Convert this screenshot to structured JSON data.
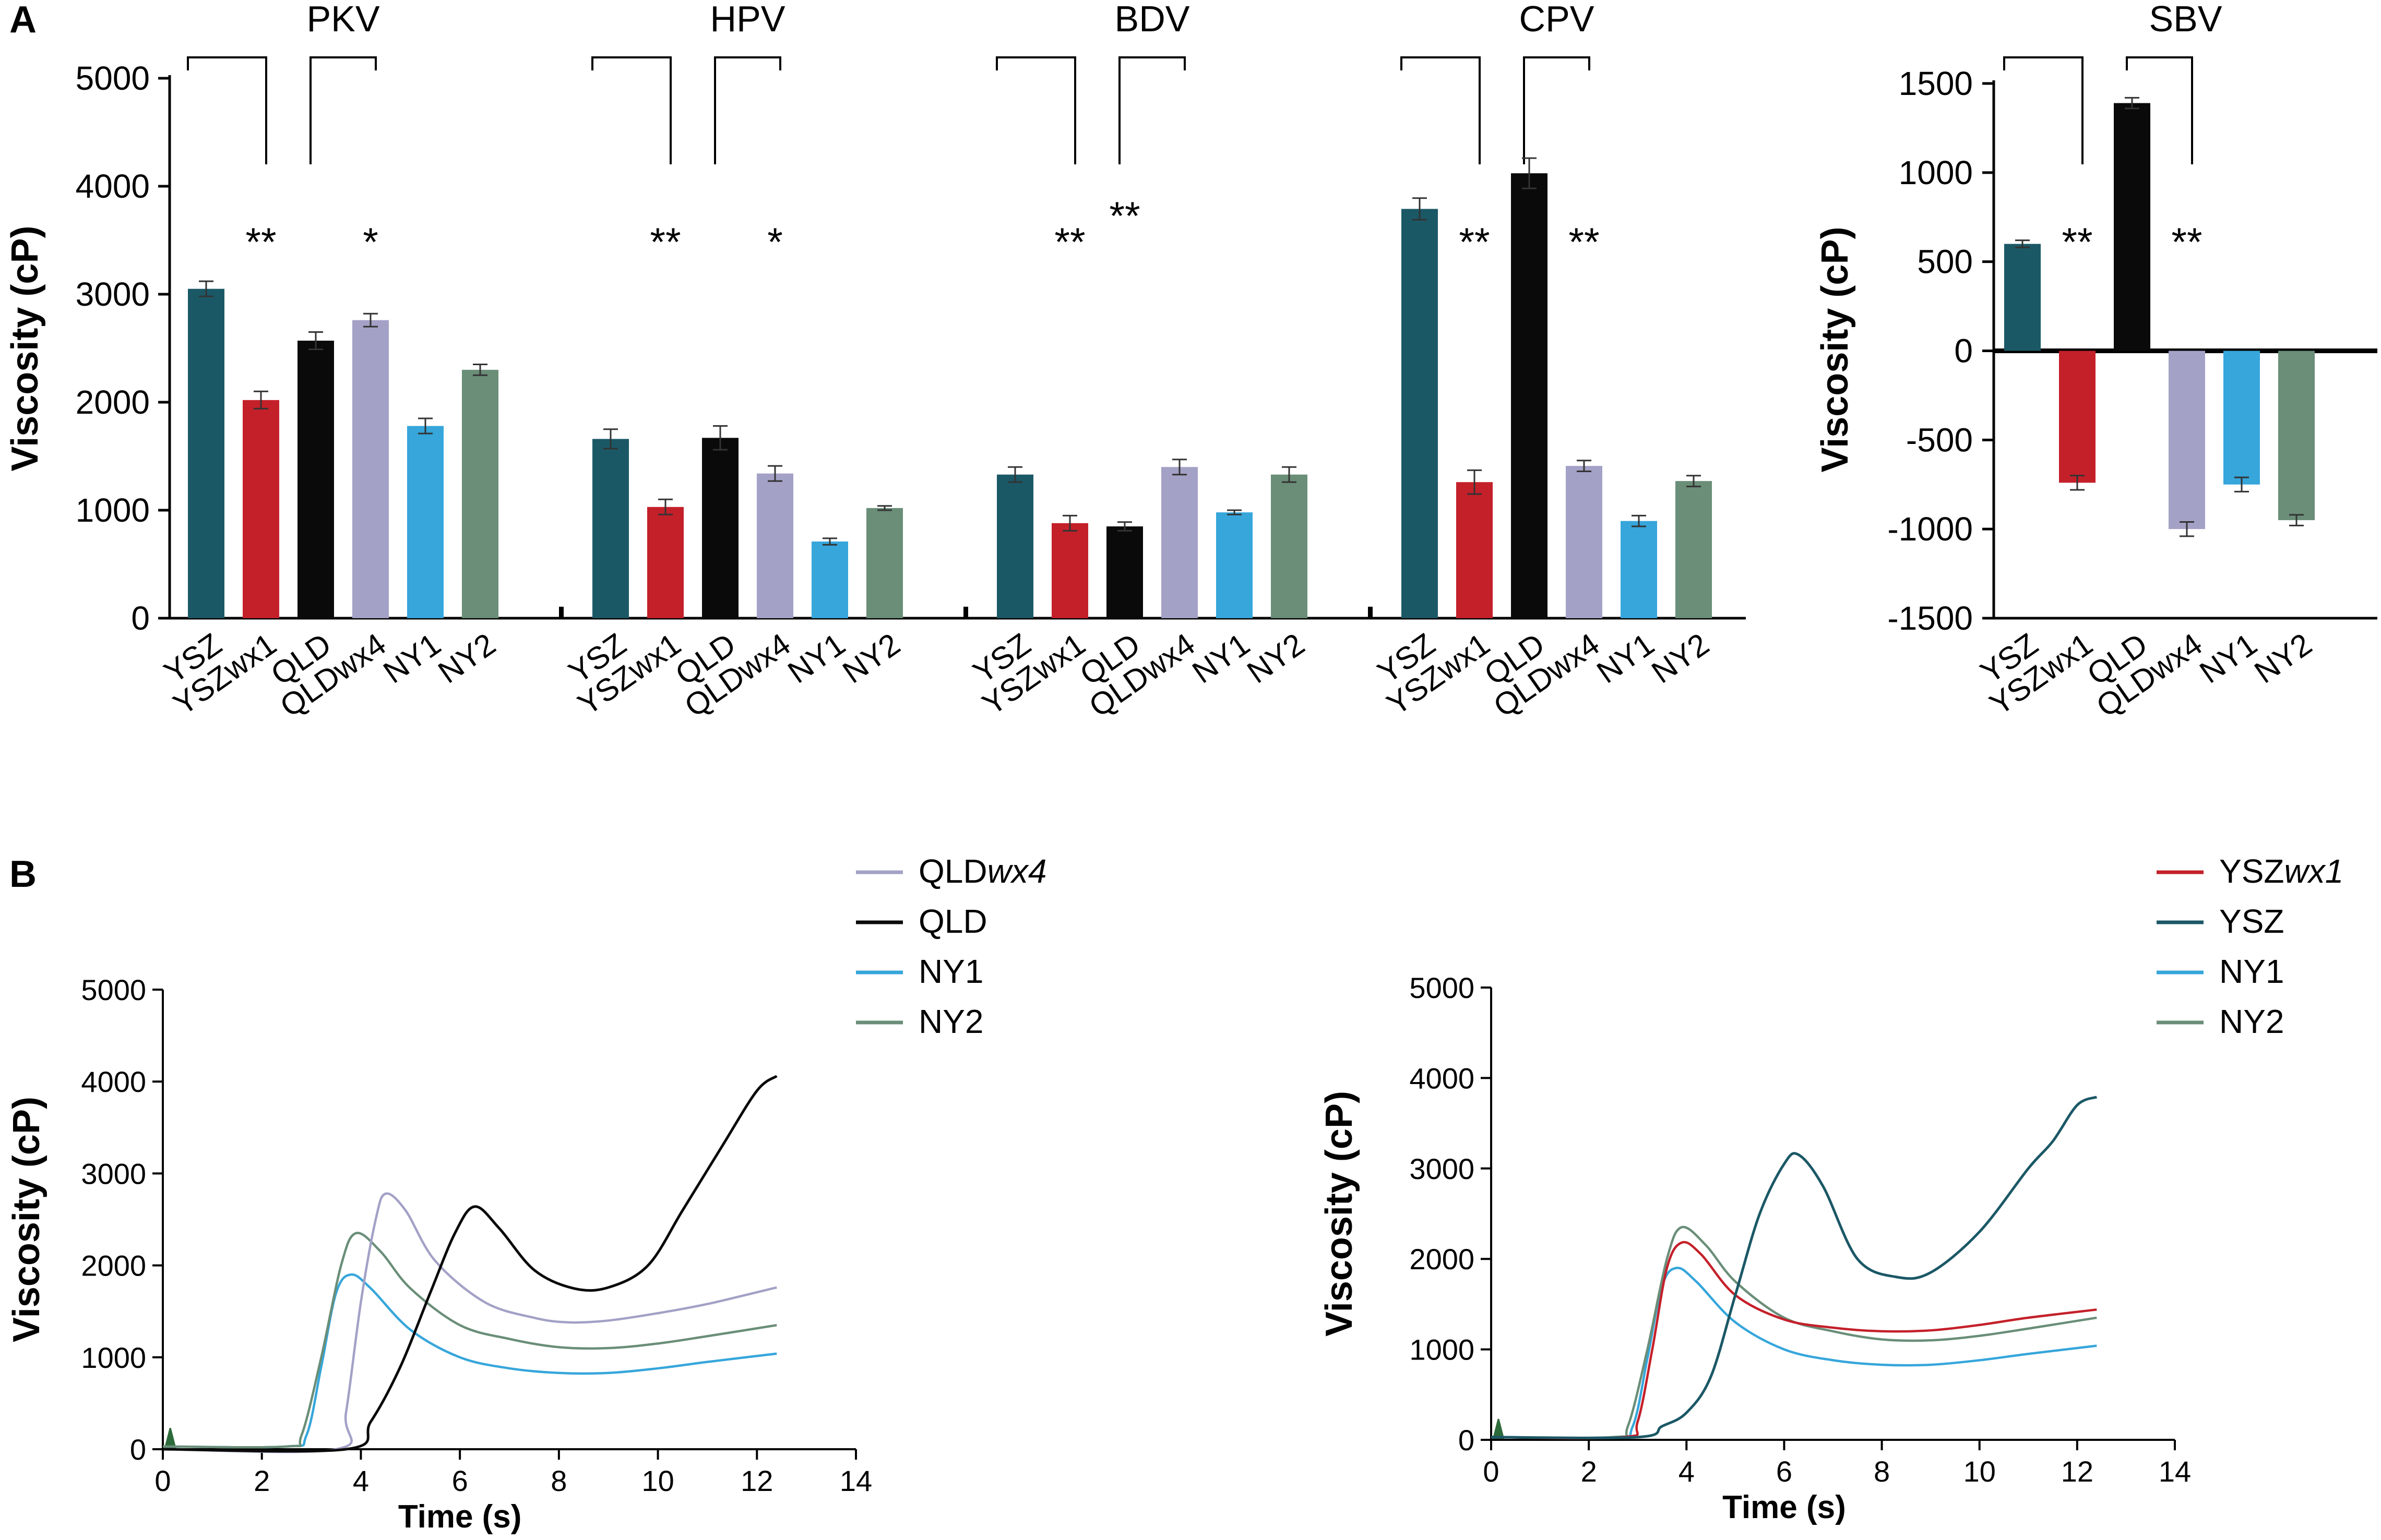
{
  "panels": {
    "a_label": "A",
    "b_label": "B"
  },
  "colors": {
    "YSZ": "#1b5866",
    "YSZwx1": "#c4202a",
    "QLD": "#0a0a0a",
    "QLDwx4": "#a3a1c6",
    "NY1": "#36a6db",
    "NY2": "#6a8e78"
  },
  "chart_data": [
    {
      "type": "bar",
      "id": "panel-a-main",
      "ylabel": "Viscosity (cP)",
      "ylim": [
        0,
        5000
      ],
      "yticks": [
        "0",
        "1000",
        "2000",
        "3000",
        "4000",
        "5000"
      ],
      "categories": [
        "YSZ",
        "YSZwx1",
        "QLD",
        "QLDwx4",
        "NY1",
        "NY2"
      ],
      "groups": [
        {
          "name": "PKV",
          "values": [
            3050,
            2020,
            2570,
            2760,
            1780,
            2300
          ],
          "errors": [
            70,
            80,
            80,
            60,
            70,
            50
          ],
          "stars": [
            {
              "text": "**",
              "at": 1
            },
            {
              "text": "*",
              "at": 3
            }
          ]
        },
        {
          "name": "HPV",
          "values": [
            1660,
            1030,
            1670,
            1340,
            710,
            1020
          ],
          "errors": [
            90,
            70,
            110,
            70,
            30,
            20
          ],
          "stars": [
            {
              "text": "**",
              "at": 1
            },
            {
              "text": "*",
              "at": 3
            }
          ]
        },
        {
          "name": "BDV",
          "values": [
            1330,
            880,
            850,
            1400,
            980,
            1330
          ],
          "errors": [
            70,
            70,
            40,
            70,
            20,
            70
          ],
          "stars": [
            {
              "text": "**",
              "at": 1
            },
            {
              "text": "**",
              "at": 2
            }
          ]
        },
        {
          "name": "CPV",
          "values": [
            3790,
            1260,
            4120,
            1410,
            900,
            1270
          ],
          "errors": [
            100,
            110,
            140,
            50,
            50,
            50
          ],
          "stars": [
            {
              "text": "**",
              "at": 1
            },
            {
              "text": "**",
              "at": 3
            }
          ]
        }
      ]
    },
    {
      "type": "bar",
      "id": "panel-a-sbv",
      "title": "SBV",
      "ylabel": "Viscosity (cP)",
      "ylim": [
        -1500,
        1500
      ],
      "yticks": [
        "-1500",
        "-1000",
        "-500",
        "0",
        "500",
        "1000",
        "1500"
      ],
      "categories": [
        "YSZ",
        "YSZwx1",
        "QLD",
        "QLDwx4",
        "NY1",
        "NY2"
      ],
      "values": [
        600,
        -740,
        1390,
        -1000,
        -750,
        -950
      ],
      "errors": [
        20,
        40,
        30,
        40,
        40,
        30
      ],
      "stars": [
        {
          "text": "**",
          "at": 1
        },
        {
          "text": "**",
          "at": 3
        }
      ]
    },
    {
      "type": "line",
      "id": "panel-b-left",
      "xlabel": "Time (s)",
      "ylabel": "Viscosity (cP)",
      "xlim": [
        0,
        14
      ],
      "ylim": [
        0,
        5000
      ],
      "xticks": [
        "0",
        "2",
        "4",
        "6",
        "8",
        "10",
        "12",
        "14"
      ],
      "yticks": [
        "0",
        "1000",
        "2000",
        "3000",
        "4000",
        "5000"
      ],
      "legend": [
        {
          "key": "QLDwx4",
          "base": "QLD",
          "suffix": "wx4"
        },
        {
          "key": "QLD",
          "base": "QLD",
          "suffix": ""
        },
        {
          "key": "NY1",
          "base": "NY1",
          "suffix": ""
        },
        {
          "key": "NY2",
          "base": "NY2",
          "suffix": ""
        }
      ],
      "series": [
        {
          "name": "NY1",
          "x": [
            0,
            2.5,
            2.9,
            3.2,
            3.5,
            3.8,
            4.2,
            5,
            6,
            7,
            8,
            9,
            10,
            11,
            12.4
          ],
          "y": [
            30,
            30,
            150,
            900,
            1700,
            1900,
            1750,
            1300,
            1000,
            880,
            830,
            830,
            880,
            950,
            1040
          ]
        },
        {
          "name": "NY2",
          "x": [
            0,
            2.5,
            2.8,
            3.2,
            3.6,
            3.9,
            4.4,
            5,
            6,
            7,
            8,
            9,
            10,
            11,
            12.4
          ],
          "y": [
            30,
            30,
            150,
            1000,
            2000,
            2350,
            2150,
            1750,
            1350,
            1200,
            1110,
            1100,
            1150,
            1230,
            1350
          ]
        },
        {
          "name": "QLDwx4",
          "x": [
            0,
            3.5,
            3.7,
            4.0,
            4.3,
            4.5,
            4.9,
            5.5,
            6.5,
            7.5,
            8.2,
            9,
            10,
            11,
            12.4
          ],
          "y": [
            0,
            0,
            400,
            1600,
            2500,
            2780,
            2600,
            2050,
            1600,
            1430,
            1380,
            1400,
            1480,
            1580,
            1760
          ]
        },
        {
          "name": "QLD",
          "x": [
            0,
            3.7,
            4.2,
            4.8,
            5.4,
            5.9,
            6.3,
            6.8,
            7.5,
            8.3,
            9,
            9.8,
            10.5,
            11.3,
            12,
            12.4
          ],
          "y": [
            0,
            0,
            300,
            900,
            1700,
            2350,
            2640,
            2400,
            1950,
            1750,
            1760,
            2000,
            2600,
            3300,
            3900,
            4060
          ]
        }
      ]
    },
    {
      "type": "line",
      "id": "panel-b-right",
      "xlabel": "Time (s)",
      "ylabel": "Viscosity (cP)",
      "xlim": [
        0,
        14
      ],
      "ylim": [
        0,
        5000
      ],
      "xticks": [
        "0",
        "2",
        "4",
        "6",
        "8",
        "10",
        "12",
        "14"
      ],
      "yticks": [
        "0",
        "1000",
        "2000",
        "3000",
        "4000",
        "5000"
      ],
      "legend": [
        {
          "key": "YSZwx1",
          "base": "YSZ",
          "suffix": "wx1"
        },
        {
          "key": "YSZ",
          "base": "YSZ",
          "suffix": ""
        },
        {
          "key": "NY1",
          "base": "NY1",
          "suffix": ""
        },
        {
          "key": "NY2",
          "base": "NY2",
          "suffix": ""
        }
      ],
      "series": [
        {
          "name": "NY1",
          "x": [
            0,
            2.5,
            2.9,
            3.2,
            3.5,
            3.8,
            4.2,
            5,
            6,
            7,
            8,
            9,
            10,
            11,
            12.4
          ],
          "y": [
            30,
            30,
            150,
            900,
            1700,
            1900,
            1750,
            1300,
            1000,
            880,
            830,
            830,
            880,
            950,
            1040
          ]
        },
        {
          "name": "NY2",
          "x": [
            0,
            2.5,
            2.8,
            3.2,
            3.6,
            3.9,
            4.4,
            5,
            6,
            7,
            8,
            9,
            10,
            11,
            12.4
          ],
          "y": [
            30,
            30,
            150,
            1000,
            2000,
            2350,
            2150,
            1750,
            1350,
            1200,
            1110,
            1100,
            1150,
            1230,
            1350
          ]
        },
        {
          "name": "YSZwx1",
          "x": [
            0,
            2.7,
            3.0,
            3.3,
            3.6,
            3.9,
            4.3,
            5,
            6,
            7,
            8,
            9,
            10,
            11,
            12.4
          ],
          "y": [
            30,
            30,
            200,
            1000,
            1900,
            2180,
            2050,
            1600,
            1330,
            1240,
            1200,
            1210,
            1270,
            1350,
            1440
          ]
        },
        {
          "name": "YSZ",
          "x": [
            0,
            3.0,
            3.5,
            4.0,
            4.5,
            5.0,
            5.5,
            6.0,
            6.3,
            6.8,
            7.5,
            8.3,
            9,
            10,
            11,
            11.5,
            12,
            12.4
          ],
          "y": [
            30,
            30,
            150,
            300,
            700,
            1600,
            2500,
            3050,
            3150,
            2800,
            2000,
            1800,
            1850,
            2300,
            3000,
            3300,
            3700,
            3790
          ]
        }
      ]
    }
  ]
}
